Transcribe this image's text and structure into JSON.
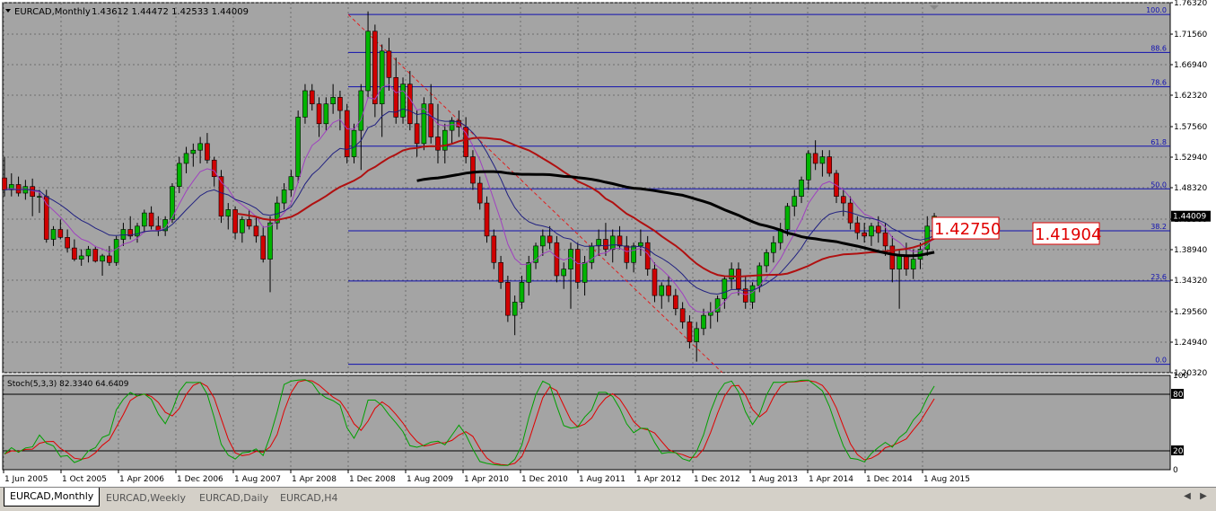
{
  "window": {
    "symbol_label": "EURCAD,Monthly",
    "ohlc": "1.43612 1.44472 1.42533 1.44009"
  },
  "tabs": [
    {
      "label": "EURCAD,Monthly",
      "active": true
    },
    {
      "label": "EURCAD,Weekly",
      "active": false
    },
    {
      "label": "EURCAD,Daily",
      "active": false
    },
    {
      "label": "EURCAD,H4",
      "active": false
    }
  ],
  "colors": {
    "chart_bg": "#a4a4a4",
    "bull": "#00b400",
    "bear": "#d00000",
    "fib_line": "#1010b0",
    "ma_black": "#000000",
    "ma_red": "#b01010",
    "ma_navy": "#202080",
    "ma_violet": "#a040c0",
    "stoch_main": "#00a000",
    "stoch_signal": "#e00000"
  },
  "price_axis": {
    "labels": [
      "1.76320",
      "1.71560",
      "1.66940",
      "1.62320",
      "1.57560",
      "1.52940",
      "1.48320",
      "1.43560",
      "1.38940",
      "1.34320",
      "1.29560",
      "1.24940",
      "1.20320"
    ],
    "current_price": "1.44009"
  },
  "fibonacci": {
    "levels": [
      {
        "label": "100.0",
        "price": 1.7453
      },
      {
        "label": "88.6",
        "price": 1.688
      },
      {
        "label": "78.6",
        "price": 1.636
      },
      {
        "label": "61.8",
        "price": 1.546
      },
      {
        "label": "50.0",
        "price": 1.4815
      },
      {
        "label": "38.2",
        "price": 1.418
      },
      {
        "label": "23.6",
        "price": 1.342
      },
      {
        "label": "0.0",
        "price": 1.216
      }
    ]
  },
  "price_labels": [
    {
      "text": "1.42750"
    },
    {
      "text": "1.41904"
    }
  ],
  "stochastic": {
    "title": "Stoch(5,3,3) 82.3340 64.6409",
    "axis_labels": [
      "100",
      "80",
      "20",
      "0"
    ]
  },
  "time_axis": {
    "labels": [
      "1 Jun 2005",
      "1 Oct 2005",
      "1 Apr 2006",
      "1 Dec 2006",
      "1 Aug 2007",
      "1 Apr 2008",
      "1 Dec 2008",
      "1 Aug 2009",
      "1 Apr 2010",
      "1 Dec 2010",
      "1 Aug 2011",
      "1 Apr 2012",
      "1 Dec 2012",
      "1 Aug 2013",
      "1 Apr 2014",
      "1 Dec 2014",
      "1 Aug 2015"
    ]
  },
  "chart_data": {
    "type": "candlestick",
    "title": "EURCAD,Monthly",
    "ylim": [
      1.2032,
      1.7632
    ],
    "candles": [
      [
        1.498,
        1.53,
        1.47,
        1.48
      ],
      [
        1.48,
        1.505,
        1.47,
        1.488
      ],
      [
        1.488,
        1.5,
        1.47,
        1.475
      ],
      [
        1.475,
        1.495,
        1.465,
        1.485
      ],
      [
        1.485,
        1.497,
        1.44,
        1.47
      ],
      [
        1.47,
        1.48,
        1.445,
        1.47
      ],
      [
        1.47,
        1.48,
        1.4,
        1.405
      ],
      [
        1.405,
        1.425,
        1.395,
        1.42
      ],
      [
        1.42,
        1.435,
        1.405,
        1.408
      ],
      [
        1.408,
        1.42,
        1.385,
        1.392
      ],
      [
        1.392,
        1.405,
        1.372,
        1.375
      ],
      [
        1.375,
        1.39,
        1.365,
        1.38
      ],
      [
        1.38,
        1.395,
        1.37,
        1.39
      ],
      [
        1.39,
        1.395,
        1.37,
        1.372
      ],
      [
        1.372,
        1.383,
        1.35,
        1.38
      ],
      [
        1.38,
        1.395,
        1.365,
        1.37
      ],
      [
        1.37,
        1.41,
        1.365,
        1.405
      ],
      [
        1.405,
        1.43,
        1.395,
        1.42
      ],
      [
        1.42,
        1.44,
        1.405,
        1.41
      ],
      [
        1.41,
        1.43,
        1.4,
        1.425
      ],
      [
        1.425,
        1.45,
        1.415,
        1.445
      ],
      [
        1.445,
        1.455,
        1.42,
        1.425
      ],
      [
        1.425,
        1.44,
        1.41,
        1.418
      ],
      [
        1.418,
        1.44,
        1.41,
        1.435
      ],
      [
        1.435,
        1.49,
        1.43,
        1.485
      ],
      [
        1.485,
        1.53,
        1.475,
        1.52
      ],
      [
        1.52,
        1.545,
        1.505,
        1.535
      ],
      [
        1.535,
        1.55,
        1.515,
        1.54
      ],
      [
        1.54,
        1.56,
        1.52,
        1.55
      ],
      [
        1.55,
        1.566,
        1.52,
        1.525
      ],
      [
        1.525,
        1.53,
        1.485,
        1.5
      ],
      [
        1.5,
        1.51,
        1.43,
        1.44
      ],
      [
        1.44,
        1.46,
        1.42,
        1.45
      ],
      [
        1.45,
        1.455,
        1.405,
        1.415
      ],
      [
        1.415,
        1.44,
        1.4,
        1.435
      ],
      [
        1.435,
        1.45,
        1.42,
        1.425
      ],
      [
        1.425,
        1.44,
        1.4,
        1.41
      ],
      [
        1.41,
        1.425,
        1.37,
        1.375
      ],
      [
        1.375,
        1.44,
        1.325,
        1.43
      ],
      [
        1.43,
        1.47,
        1.42,
        1.46
      ],
      [
        1.46,
        1.49,
        1.45,
        1.48
      ],
      [
        1.48,
        1.51,
        1.47,
        1.5
      ],
      [
        1.5,
        1.6,
        1.49,
        1.59
      ],
      [
        1.59,
        1.64,
        1.58,
        1.63
      ],
      [
        1.63,
        1.64,
        1.6,
        1.61
      ],
      [
        1.61,
        1.62,
        1.56,
        1.58
      ],
      [
        1.58,
        1.62,
        1.57,
        1.61
      ],
      [
        1.61,
        1.64,
        1.595,
        1.62
      ],
      [
        1.62,
        1.63,
        1.57,
        1.6
      ],
      [
        1.6,
        1.61,
        1.52,
        1.53
      ],
      [
        1.53,
        1.58,
        1.52,
        1.57
      ],
      [
        1.57,
        1.64,
        1.51,
        1.63
      ],
      [
        1.63,
        1.75,
        1.62,
        1.72
      ],
      [
        1.72,
        1.73,
        1.59,
        1.61
      ],
      [
        1.61,
        1.7,
        1.56,
        1.69
      ],
      [
        1.69,
        1.71,
        1.63,
        1.65
      ],
      [
        1.65,
        1.68,
        1.58,
        1.59
      ],
      [
        1.59,
        1.65,
        1.58,
        1.64
      ],
      [
        1.64,
        1.66,
        1.57,
        1.58
      ],
      [
        1.58,
        1.6,
        1.53,
        1.55
      ],
      [
        1.55,
        1.62,
        1.54,
        1.61
      ],
      [
        1.61,
        1.64,
        1.55,
        1.56
      ],
      [
        1.56,
        1.61,
        1.52,
        1.54
      ],
      [
        1.54,
        1.58,
        1.52,
        1.57
      ],
      [
        1.57,
        1.59,
        1.55,
        1.585
      ],
      [
        1.585,
        1.6,
        1.56,
        1.575
      ],
      [
        1.575,
        1.59,
        1.52,
        1.53
      ],
      [
        1.53,
        1.54,
        1.48,
        1.49
      ],
      [
        1.49,
        1.5,
        1.45,
        1.46
      ],
      [
        1.46,
        1.47,
        1.4,
        1.41
      ],
      [
        1.41,
        1.42,
        1.36,
        1.37
      ],
      [
        1.37,
        1.38,
        1.33,
        1.34
      ],
      [
        1.34,
        1.35,
        1.28,
        1.29
      ],
      [
        1.29,
        1.32,
        1.26,
        1.31
      ],
      [
        1.31,
        1.35,
        1.3,
        1.34
      ],
      [
        1.34,
        1.38,
        1.32,
        1.37
      ],
      [
        1.37,
        1.4,
        1.36,
        1.395
      ],
      [
        1.395,
        1.42,
        1.38,
        1.41
      ],
      [
        1.41,
        1.425,
        1.39,
        1.4
      ],
      [
        1.4,
        1.41,
        1.34,
        1.35
      ],
      [
        1.35,
        1.37,
        1.33,
        1.36
      ],
      [
        1.36,
        1.4,
        1.3,
        1.39
      ],
      [
        1.39,
        1.4,
        1.33,
        1.34
      ],
      [
        1.34,
        1.38,
        1.32,
        1.37
      ],
      [
        1.37,
        1.4,
        1.36,
        1.395
      ],
      [
        1.395,
        1.42,
        1.38,
        1.405
      ],
      [
        1.405,
        1.43,
        1.38,
        1.39
      ],
      [
        1.39,
        1.42,
        1.37,
        1.41
      ],
      [
        1.41,
        1.425,
        1.39,
        1.395
      ],
      [
        1.395,
        1.41,
        1.36,
        1.37
      ],
      [
        1.37,
        1.4,
        1.355,
        1.395
      ],
      [
        1.395,
        1.42,
        1.38,
        1.4
      ],
      [
        1.4,
        1.41,
        1.35,
        1.36
      ],
      [
        1.36,
        1.37,
        1.31,
        1.32
      ],
      [
        1.32,
        1.34,
        1.3,
        1.335
      ],
      [
        1.335,
        1.35,
        1.31,
        1.32
      ],
      [
        1.32,
        1.33,
        1.29,
        1.3
      ],
      [
        1.3,
        1.31,
        1.27,
        1.28
      ],
      [
        1.28,
        1.29,
        1.24,
        1.25
      ],
      [
        1.25,
        1.28,
        1.22,
        1.27
      ],
      [
        1.27,
        1.3,
        1.26,
        1.29
      ],
      [
        1.29,
        1.31,
        1.27,
        1.295
      ],
      [
        1.295,
        1.32,
        1.28,
        1.315
      ],
      [
        1.315,
        1.35,
        1.3,
        1.345
      ],
      [
        1.345,
        1.37,
        1.33,
        1.36
      ],
      [
        1.36,
        1.37,
        1.32,
        1.33
      ],
      [
        1.33,
        1.35,
        1.3,
        1.31
      ],
      [
        1.31,
        1.34,
        1.3,
        1.335
      ],
      [
        1.335,
        1.37,
        1.325,
        1.365
      ],
      [
        1.365,
        1.39,
        1.355,
        1.385
      ],
      [
        1.385,
        1.41,
        1.37,
        1.4
      ],
      [
        1.4,
        1.43,
        1.39,
        1.42
      ],
      [
        1.42,
        1.46,
        1.41,
        1.455
      ],
      [
        1.455,
        1.48,
        1.44,
        1.47
      ],
      [
        1.47,
        1.5,
        1.46,
        1.495
      ],
      [
        1.495,
        1.54,
        1.48,
        1.535
      ],
      [
        1.535,
        1.555,
        1.51,
        1.52
      ],
      [
        1.52,
        1.54,
        1.5,
        1.53
      ],
      [
        1.53,
        1.54,
        1.5,
        1.505
      ],
      [
        1.505,
        1.51,
        1.46,
        1.47
      ],
      [
        1.47,
        1.48,
        1.44,
        1.46
      ],
      [
        1.46,
        1.47,
        1.42,
        1.43
      ],
      [
        1.43,
        1.44,
        1.405,
        1.415
      ],
      [
        1.415,
        1.43,
        1.4,
        1.41
      ],
      [
        1.41,
        1.43,
        1.395,
        1.425
      ],
      [
        1.425,
        1.44,
        1.4,
        1.415
      ],
      [
        1.415,
        1.43,
        1.38,
        1.395
      ],
      [
        1.395,
        1.41,
        1.34,
        1.36
      ],
      [
        1.36,
        1.39,
        1.3,
        1.38
      ],
      [
        1.38,
        1.4,
        1.35,
        1.36
      ],
      [
        1.36,
        1.39,
        1.345,
        1.375
      ],
      [
        1.375,
        1.4,
        1.36,
        1.39
      ],
      [
        1.39,
        1.44,
        1.38,
        1.425
      ],
      [
        1.436,
        1.445,
        1.425,
        1.44
      ]
    ]
  }
}
